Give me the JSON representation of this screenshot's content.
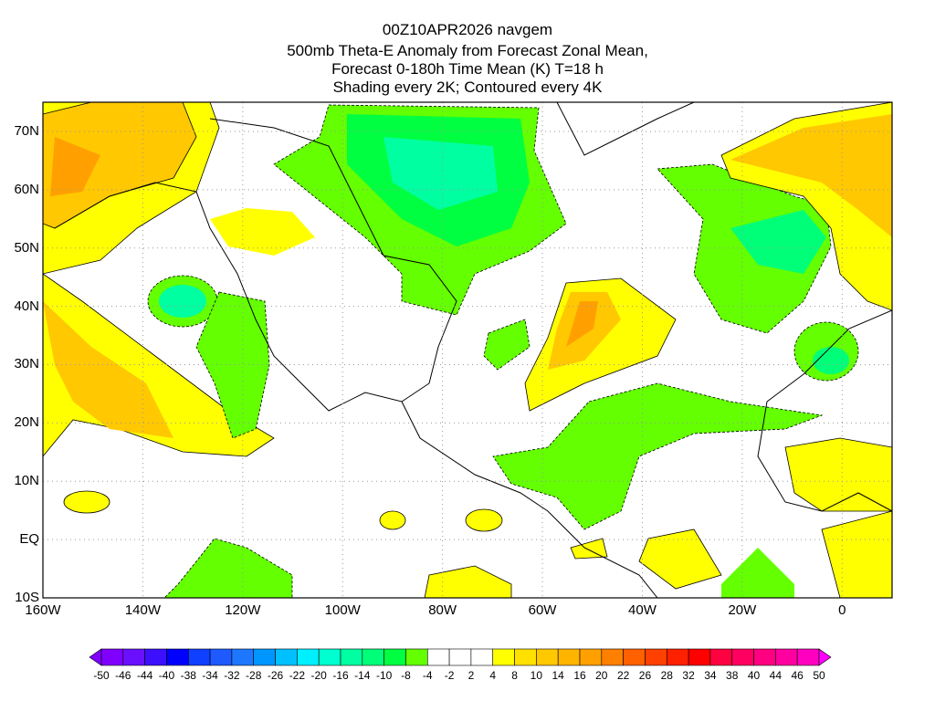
{
  "title": [
    "00Z10APR2026 navgem",
    "500mb Theta-E Anomaly from Forecast Zonal Mean,",
    "Forecast 0-180h Time Mean (K) T=18 h",
    "Shading every 2K; Contoured every 4K"
  ],
  "lat_labels": [
    "70N",
    "60N",
    "50N",
    "40N",
    "30N",
    "20N",
    "10N",
    "EQ",
    "10S"
  ],
  "lat_values": [
    70,
    60,
    50,
    40,
    30,
    20,
    10,
    0,
    -10
  ],
  "lon_labels": [
    "160W",
    "140W",
    "120W",
    "100W",
    "80W",
    "60W",
    "40W",
    "20W",
    "0"
  ],
  "lon_values": [
    -160,
    -140,
    -120,
    -100,
    -80,
    -60,
    -40,
    -20,
    0
  ],
  "colorbar": {
    "labels": [
      "-50",
      "-46",
      "-44",
      "-40",
      "-38",
      "-34",
      "-32",
      "-28",
      "-26",
      "-22",
      "-20",
      "-16",
      "-14",
      "-10",
      "-8",
      "-4",
      "-2",
      "2",
      "4",
      "8",
      "10",
      "14",
      "16",
      "20",
      "22",
      "26",
      "28",
      "32",
      "34",
      "38",
      "40",
      "44",
      "46",
      "50"
    ],
    "colors": [
      "#8000ff",
      "#6a10ff",
      "#3c10ff",
      "#0000ff",
      "#1040ff",
      "#1e5aff",
      "#1e78ff",
      "#0096ff",
      "#00c0ff",
      "#00f0ff",
      "#00ffd0",
      "#00ffa0",
      "#00ff78",
      "#00ff40",
      "#64ff00",
      "#ffffff",
      "#ffffff",
      "#ffffff",
      "#ffff00",
      "#ffe000",
      "#ffc800",
      "#ffb400",
      "#ffa000",
      "#ff8000",
      "#ff6000",
      "#ff4000",
      "#ff2000",
      "#ff0000",
      "#ff0040",
      "#ff0060",
      "#ff0080",
      "#ff00a0",
      "#ff00c0"
    ],
    "left_arrow": "#8000ff",
    "right_arrow": "#ff00ff"
  }
}
